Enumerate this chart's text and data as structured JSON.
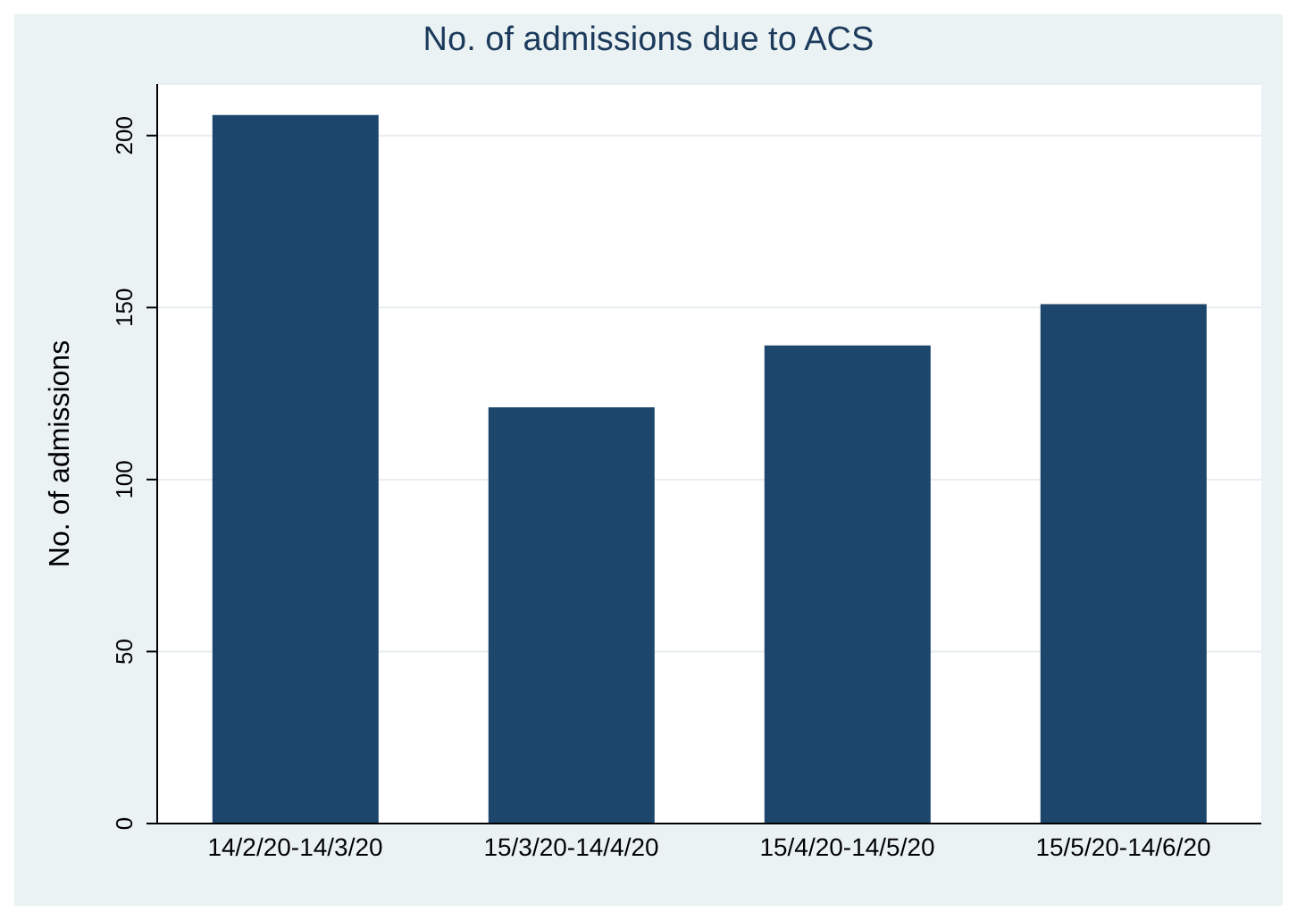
{
  "chart_data": {
    "type": "bar",
    "title": "No. of admissions due to ACS",
    "ylabel": "No. of admissions",
    "categories": [
      "14/2/20-14/3/20",
      "15/3/20-14/4/20",
      "15/4/20-14/5/20",
      "15/5/20-14/6/20"
    ],
    "values": [
      206,
      121,
      139,
      151
    ],
    "color": "#1c466c",
    "ylim": [
      0,
      215
    ],
    "yticks": [
      0,
      50,
      100,
      150,
      200
    ],
    "grid": "y"
  }
}
